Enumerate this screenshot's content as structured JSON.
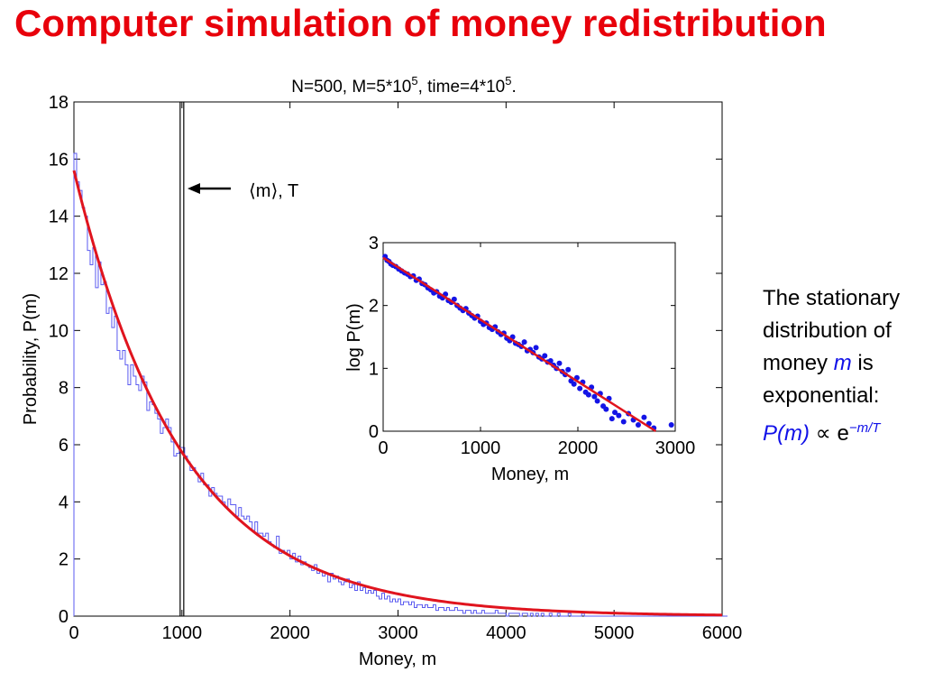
{
  "slide": {
    "title": "Computer simulation of money redistribution"
  },
  "side_note": {
    "line1": "The stationary",
    "line2": "distribution of",
    "line3_prefix": "money ",
    "line3_var": "m",
    "line3_suffix": " is",
    "line4": "exponential:",
    "formula_lhs": "P(m)",
    "formula_prop": " ∝ e",
    "formula_exponent": "−m/T"
  },
  "colors": {
    "title": "#e8000b",
    "fit_line": "#e0141e",
    "histogram": "#5a5af0",
    "inset_points": "#1414e6",
    "emphasis": "#1010e8"
  },
  "chart_data": [
    {
      "type": "line",
      "title_text": "N=500, M=5*10",
      "title_exp1": "5",
      "title_mid": ", time=4*10",
      "title_exp2": "5",
      "title_end": ".",
      "xlabel": "Money, m",
      "ylabel": "Probability, P(m)",
      "xlim": [
        0,
        6000
      ],
      "ylim": [
        0,
        18
      ],
      "x_ticks": [
        0,
        1000,
        2000,
        3000,
        4000,
        5000,
        6000
      ],
      "y_ticks": [
        0,
        2,
        4,
        6,
        8,
        10,
        12,
        14,
        16,
        18
      ],
      "annotation": "⟨m⟩, T",
      "vertical_line_x": 1000,
      "fit": {
        "name": "exponential fit",
        "amplitude": 15.6,
        "T": 1000
      },
      "histogram": {
        "bin_width": 25,
        "x_start": 0,
        "values": [
          16.2,
          15.2,
          14.9,
          14.3,
          14.0,
          12.8,
          12.3,
          12.9,
          11.5,
          12.4,
          11.6,
          11.7,
          10.6,
          10.8,
          10.1,
          10.5,
          9.3,
          9.0,
          9.3,
          8.8,
          8.1,
          8.8,
          8.4,
          8.1,
          7.9,
          8.4,
          8.2,
          7.2,
          7.5,
          7.4,
          7.1,
          6.9,
          6.4,
          6.6,
          6.9,
          6.6,
          6.1,
          5.6,
          5.7,
          5.9,
          5.9,
          5.6,
          5.4,
          5.1,
          5.2,
          5.0,
          4.7,
          5.0,
          4.6,
          4.6,
          4.2,
          4.5,
          4.3,
          4.2,
          4.2,
          4.0,
          3.8,
          4.1,
          3.9,
          3.9,
          3.5,
          3.8,
          3.5,
          3.4,
          3.5,
          3.3,
          3.0,
          3.3,
          2.9,
          2.9,
          2.8,
          2.9,
          2.6,
          2.5,
          2.4,
          2.8,
          2.2,
          2.3,
          2.2,
          2.3,
          2.0,
          2.2,
          1.9,
          2.1,
          1.8,
          1.9,
          1.8,
          1.7,
          1.6,
          1.8,
          1.5,
          1.6,
          1.4,
          1.5,
          1.2,
          1.5,
          1.3,
          1.4,
          1.2,
          1.1,
          1.2,
          1.3,
          1.0,
          1.1,
          0.9,
          1.2,
          0.9,
          1.0,
          0.8,
          0.9,
          0.8,
          0.9,
          0.7,
          0.6,
          0.8,
          0.6,
          0.7,
          0.5,
          0.6,
          0.5,
          0.6,
          0.4,
          0.5,
          0.5,
          0.4,
          0.5,
          0.3,
          0.4,
          0.4,
          0.3,
          0.4,
          0.3,
          0.3,
          0.4,
          0.2,
          0.3,
          0.3,
          0.2,
          0.3,
          0.2,
          0.2,
          0.3,
          0.2,
          0.2,
          0.1,
          0.2,
          0.2,
          0.1,
          0.2,
          0.1,
          0.1,
          0.2,
          0.1,
          0.1,
          0.1,
          0.1,
          0.2,
          0.1,
          0.1,
          0.1,
          0.0,
          0.1,
          0.1,
          0.1,
          0.1,
          0.0,
          0.1,
          0.1,
          0.0,
          0.1,
          0.0,
          0.1,
          0.0,
          0.1,
          0.0,
          0.0,
          0.1,
          0.0,
          0.0,
          0.1,
          0.0,
          0.0,
          0.0,
          0.1,
          0.0,
          0.0,
          0.0,
          0.0,
          0.1,
          0.0,
          0.0,
          0.0,
          0.0,
          0.0,
          0.0,
          0.0,
          0.0,
          0.0,
          0.0,
          0.0,
          0.0,
          0.0,
          0.0,
          0.0,
          0.0,
          0.0,
          0.0,
          0.0,
          0.0,
          0.0,
          0.0,
          0.0,
          0.0,
          0.0,
          0.0,
          0.0,
          0.0,
          0.0,
          0.0,
          0.0,
          0.0,
          0.0,
          0.0,
          0.0,
          0.0,
          0.0,
          0.0,
          0.0,
          0.0,
          0.0,
          0.0,
          0.0,
          0.0,
          0.0,
          0.0,
          0.0,
          0.0,
          0.0,
          0.0,
          0.0,
          0.0,
          0.0
        ]
      }
    },
    {
      "type": "scatter",
      "xlabel": "Money, m",
      "ylabel": "log P(m)",
      "xlim": [
        0,
        3000
      ],
      "ylim": [
        0,
        3
      ],
      "x_ticks": [
        0,
        1000,
        2000,
        3000
      ],
      "y_ticks": [
        0,
        1,
        2,
        3
      ],
      "fit": {
        "x": [
          0,
          2800
        ],
        "y": [
          2.76,
          0
        ]
      },
      "points": [
        [
          20,
          2.78
        ],
        [
          40,
          2.72
        ],
        [
          60,
          2.7
        ],
        [
          80,
          2.66
        ],
        [
          100,
          2.64
        ],
        [
          130,
          2.62
        ],
        [
          160,
          2.58
        ],
        [
          190,
          2.55
        ],
        [
          220,
          2.52
        ],
        [
          250,
          2.5
        ],
        [
          280,
          2.46
        ],
        [
          310,
          2.47
        ],
        [
          340,
          2.4
        ],
        [
          370,
          2.42
        ],
        [
          400,
          2.35
        ],
        [
          430,
          2.33
        ],
        [
          460,
          2.28
        ],
        [
          490,
          2.25
        ],
        [
          520,
          2.2
        ],
        [
          550,
          2.22
        ],
        [
          580,
          2.15
        ],
        [
          610,
          2.12
        ],
        [
          640,
          2.18
        ],
        [
          670,
          2.08
        ],
        [
          700,
          2.05
        ],
        [
          730,
          2.1
        ],
        [
          760,
          2.0
        ],
        [
          790,
          1.96
        ],
        [
          820,
          1.92
        ],
        [
          850,
          1.95
        ],
        [
          880,
          1.88
        ],
        [
          910,
          1.84
        ],
        [
          940,
          1.8
        ],
        [
          970,
          1.83
        ],
        [
          1000,
          1.75
        ],
        [
          1030,
          1.7
        ],
        [
          1060,
          1.72
        ],
        [
          1090,
          1.65
        ],
        [
          1120,
          1.62
        ],
        [
          1150,
          1.66
        ],
        [
          1180,
          1.58
        ],
        [
          1210,
          1.54
        ],
        [
          1240,
          1.56
        ],
        [
          1270,
          1.48
        ],
        [
          1300,
          1.44
        ],
        [
          1330,
          1.5
        ],
        [
          1360,
          1.4
        ],
        [
          1390,
          1.38
        ],
        [
          1420,
          1.35
        ],
        [
          1450,
          1.42
        ],
        [
          1480,
          1.28
        ],
        [
          1510,
          1.3
        ],
        [
          1540,
          1.25
        ],
        [
          1570,
          1.33
        ],
        [
          1600,
          1.18
        ],
        [
          1630,
          1.15
        ],
        [
          1660,
          1.2
        ],
        [
          1690,
          1.1
        ],
        [
          1720,
          1.12
        ],
        [
          1750,
          1.05
        ],
        [
          1780,
          1.0
        ],
        [
          1810,
          1.08
        ],
        [
          1840,
          0.95
        ],
        [
          1870,
          0.9
        ],
        [
          1900,
          0.98
        ],
        [
          1930,
          0.8
        ],
        [
          1960,
          0.75
        ],
        [
          1990,
          0.85
        ],
        [
          2020,
          0.68
        ],
        [
          2050,
          0.78
        ],
        [
          2080,
          0.62
        ],
        [
          2110,
          0.58
        ],
        [
          2140,
          0.7
        ],
        [
          2170,
          0.55
        ],
        [
          2200,
          0.48
        ],
        [
          2230,
          0.6
        ],
        [
          2260,
          0.4
        ],
        [
          2290,
          0.35
        ],
        [
          2320,
          0.52
        ],
        [
          2350,
          0.2
        ],
        [
          2380,
          0.3
        ],
        [
          2420,
          0.25
        ],
        [
          2470,
          0.15
        ],
        [
          2520,
          0.28
        ],
        [
          2570,
          0.18
        ],
        [
          2620,
          0.1
        ],
        [
          2680,
          0.22
        ],
        [
          2730,
          0.12
        ],
        [
          2780,
          0.05
        ],
        [
          2960,
          0.1
        ]
      ]
    }
  ]
}
